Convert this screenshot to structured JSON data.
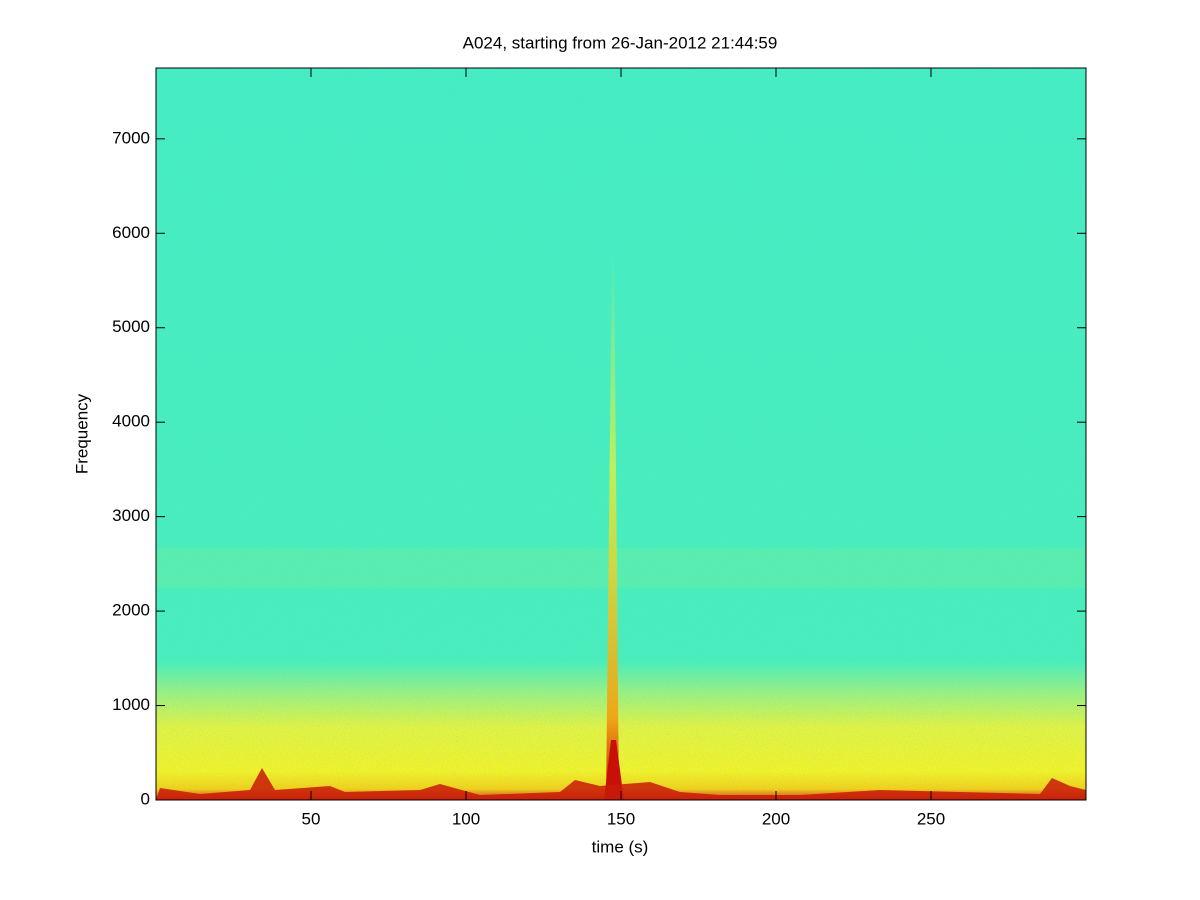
{
  "chart_data": {
    "type": "spectrogram",
    "title": "A024, starting from 26-Jan-2012 21:44:59",
    "xlabel": "time (s)",
    "ylabel": "Frequency",
    "xlim": [
      0,
      300
    ],
    "ylim": [
      0,
      7750
    ],
    "xticks": [
      50,
      100,
      150,
      200,
      250
    ],
    "yticks": [
      0,
      1000,
      2000,
      3000,
      4000,
      5000,
      6000,
      7000
    ],
    "colormap": "jet"
  }
}
